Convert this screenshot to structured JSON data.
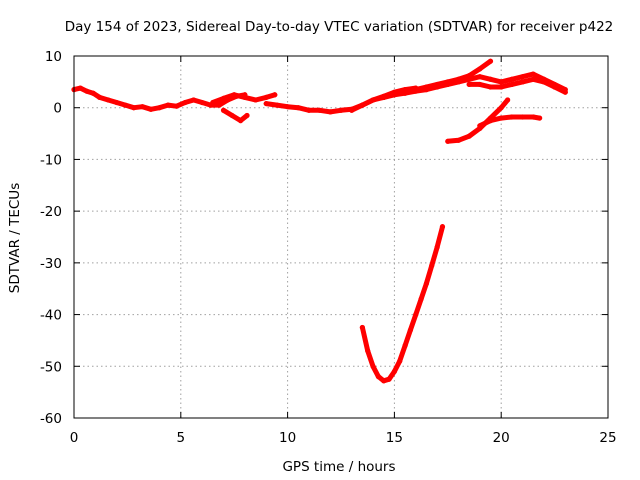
{
  "chart_data": {
    "type": "scatter",
    "title": "Day 154 of 2023, Sidereal Day-to-day VTEC variation (SDTVAR) for receiver p422",
    "xlabel": "GPS time / hours",
    "ylabel": "SDTVAR / TECUs",
    "xlim": [
      0,
      25
    ],
    "ylim": [
      -60,
      10
    ],
    "xticks": [
      0,
      5,
      10,
      15,
      20,
      25
    ],
    "yticks": [
      10,
      0,
      -10,
      -20,
      -30,
      -40,
      -50,
      -60
    ],
    "grid": true,
    "series": [
      {
        "color": "#ff0000",
        "tracks": [
          {
            "x": [
              0.0,
              0.3,
              0.6,
              0.9,
              1.2,
              1.6,
              2.0,
              2.4,
              2.8,
              3.2,
              3.6,
              4.0,
              4.4,
              4.8,
              5.2,
              5.6,
              6.0,
              6.4,
              6.8,
              7.2,
              7.6,
              8.0
            ],
            "y": [
              3.5,
              3.8,
              3.2,
              2.8,
              2.0,
              1.5,
              1.0,
              0.5,
              0.0,
              0.2,
              -0.3,
              0.0,
              0.5,
              0.3,
              1.0,
              1.5,
              1.0,
              0.5,
              0.5,
              1.5,
              2.2,
              2.5
            ]
          },
          {
            "x": [
              6.5,
              7.0,
              7.5,
              8.0,
              8.5,
              9.0,
              9.4
            ],
            "y": [
              1.0,
              1.8,
              2.5,
              2.0,
              1.5,
              2.0,
              2.5
            ]
          },
          {
            "x": [
              7.0,
              7.4,
              7.8,
              8.1
            ],
            "y": [
              -0.5,
              -1.5,
              -2.5,
              -1.5
            ]
          },
          {
            "x": [
              9.0,
              9.5,
              10.0,
              10.5,
              11.0,
              11.5,
              12.0,
              12.5,
              13.0,
              13.5,
              14.0,
              14.5,
              15.0,
              15.5,
              16.0
            ],
            "y": [
              0.8,
              0.5,
              0.2,
              0.0,
              -0.5,
              -0.5,
              -0.8,
              -0.5,
              -0.3,
              0.5,
              1.5,
              2.2,
              3.0,
              3.5,
              3.8
            ]
          },
          {
            "x": [
              13.0,
              13.5,
              14.0,
              14.5,
              15.0,
              15.5,
              16.0,
              16.5,
              17.0,
              17.5,
              18.0,
              18.5,
              19.0,
              19.5,
              20.0,
              20.5,
              21.0,
              21.5,
              22.0,
              22.5,
              23.0
            ],
            "y": [
              -0.5,
              0.5,
              1.5,
              2.0,
              2.5,
              2.8,
              3.2,
              3.5,
              4.0,
              4.5,
              5.0,
              5.5,
              6.0,
              5.5,
              5.0,
              5.5,
              6.0,
              6.5,
              5.5,
              4.5,
              3.5
            ]
          },
          {
            "x": [
              14.5,
              15.0,
              15.5,
              16.0,
              16.5,
              17.0,
              17.5,
              18.0,
              18.5,
              19.0,
              19.5
            ],
            "y": [
              2.0,
              2.8,
              3.2,
              3.5,
              4.0,
              4.5,
              5.0,
              5.5,
              6.2,
              7.5,
              9.0
            ]
          },
          {
            "x": [
              18.5,
              19.0,
              19.5,
              20.0,
              20.5,
              21.0,
              21.5,
              22.0,
              22.5,
              23.0
            ],
            "y": [
              4.5,
              4.5,
              4.0,
              4.0,
              4.5,
              5.0,
              5.5,
              5.0,
              4.0,
              3.0
            ]
          },
          {
            "x": [
              17.5,
              18.0,
              18.5,
              19.0,
              19.5,
              20.0,
              20.3
            ],
            "y": [
              -6.5,
              -6.3,
              -5.5,
              -4.0,
              -2.0,
              0.0,
              1.5
            ]
          },
          {
            "x": [
              19.0,
              19.5,
              20.0,
              20.5,
              21.0,
              21.5,
              21.8
            ],
            "y": [
              -3.5,
              -2.5,
              -2.0,
              -1.8,
              -1.8,
              -1.8,
              -2.0
            ]
          },
          {
            "x": [
              13.5,
              13.75,
              14.0,
              14.25,
              14.5,
              14.75,
              15.0,
              15.25,
              15.5,
              15.75,
              16.0,
              16.25,
              16.5,
              16.75,
              17.0,
              17.25
            ],
            "y": [
              -42.5,
              -47.0,
              -50.0,
              -52.0,
              -52.8,
              -52.5,
              -51.0,
              -49.0,
              -46.0,
              -43.0,
              -40.0,
              -37.0,
              -34.0,
              -30.5,
              -27.0,
              -23.0
            ]
          }
        ]
      }
    ]
  }
}
